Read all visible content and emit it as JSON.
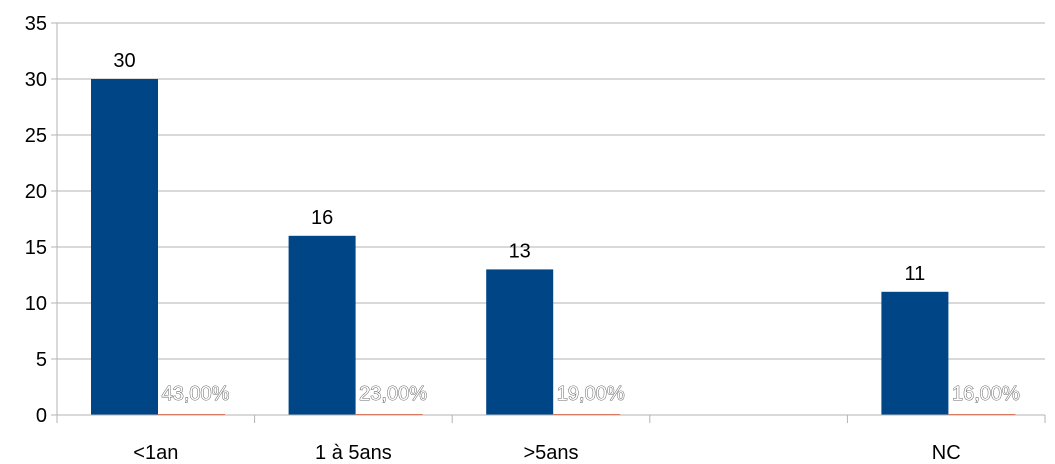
{
  "chart_data": {
    "type": "bar",
    "categories": [
      "<1an",
      "1 à 5ans",
      ">5ans",
      "",
      "NC"
    ],
    "series": [
      {
        "values": [
          30,
          16,
          13,
          null,
          11
        ],
        "color": "#004586",
        "labels": [
          "30",
          "16",
          "13",
          "",
          "11"
        ]
      },
      {
        "values": [
          0,
          0,
          0,
          null,
          0
        ],
        "labels": [
          "43,00%",
          "23,00%",
          "19,00%",
          "",
          "16,00%"
        ]
      }
    ],
    "ylim": [
      0,
      35
    ],
    "yticks": [
      "0",
      "5",
      "10",
      "15",
      "20",
      "25",
      "30",
      "35"
    ],
    "grid": true,
    "legend": "none",
    "title": "",
    "xlabel": "",
    "ylabel": ""
  }
}
